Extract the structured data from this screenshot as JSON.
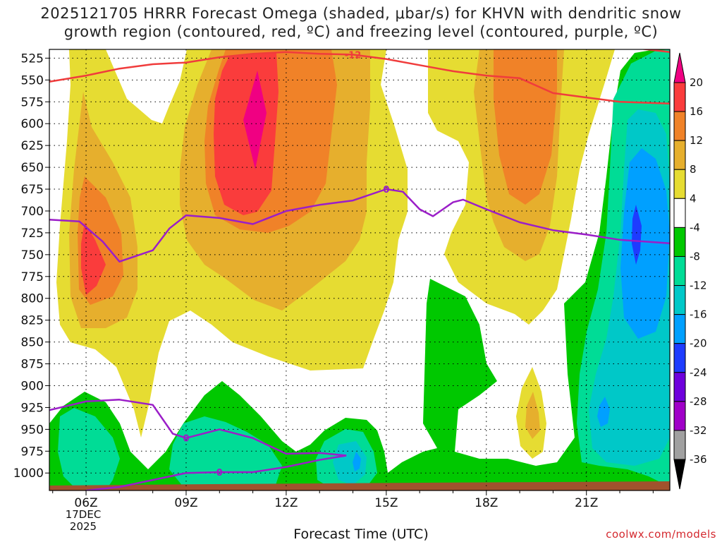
{
  "title_line1": "2025121705 HRRR Forecast Omega (shaded, μbar/s) for KHVN with dendritic snow",
  "title_line2": "growth region (contoured, red, ºC) and freezing level (contoured, purple, ºC)",
  "xlabel": "Forecast Time (UTC)",
  "date_label": [
    "17DEC",
    "2025"
  ],
  "credit": "coolwx.com/models",
  "chart_data": {
    "type": "heatmap",
    "x_start_hour": 4.9,
    "x_end_hour": 23.5,
    "x_ticks": [
      {
        "hour": 6,
        "label": "06Z"
      },
      {
        "hour": 9,
        "label": "09Z"
      },
      {
        "hour": 12,
        "label": "12Z"
      },
      {
        "hour": 15,
        "label": "15Z"
      },
      {
        "hour": 18,
        "label": "18Z"
      },
      {
        "hour": 21,
        "label": "21Z"
      }
    ],
    "y_top": 515,
    "y_bottom": 1020,
    "y_ticks": [
      525,
      550,
      575,
      600,
      625,
      650,
      675,
      700,
      725,
      750,
      775,
      800,
      825,
      850,
      875,
      900,
      925,
      950,
      975,
      1000
    ],
    "colorbar": {
      "levels": [
        -36,
        -32,
        -28,
        -24,
        -20,
        -16,
        -12,
        -8,
        -4,
        4,
        8,
        12,
        16,
        20
      ],
      "label_values": [
        20,
        16,
        12,
        8,
        4,
        -4,
        -8,
        -12,
        -16,
        -20,
        -24,
        -28,
        -32,
        -36
      ],
      "colors": {
        "below_-32": "#000000",
        "-36_-32": "#a0a0a0",
        "-32_-28": "#a000c8",
        "-28_-24": "#6e00dc",
        "-24_-20": "#1e3cff",
        "-20_-16": "#00a0ff",
        "-16_-12": "#00c8c8",
        "-12_-8": "#00dc96",
        "-8_-4": "#00c800",
        "-4_4": "#ffffff",
        "4_8": "#e6dc32",
        "8_12": "#e6af2d",
        "12_16": "#f08228",
        "16_20": "#fa3c3c",
        "above_20": "#f00082"
      }
    },
    "dgz_contours": [
      {
        "value": -12,
        "label": "-12",
        "points": [
          [
            4.9,
            552
          ],
          [
            6,
            545
          ],
          [
            7,
            537
          ],
          [
            8,
            532
          ],
          [
            9,
            530
          ],
          [
            10,
            524
          ],
          [
            11,
            520
          ],
          [
            12,
            518
          ],
          [
            13,
            520
          ],
          [
            14,
            521
          ],
          [
            15,
            526
          ],
          [
            16,
            533
          ],
          [
            17,
            540
          ],
          [
            18,
            545
          ],
          [
            19,
            548
          ],
          [
            20,
            565
          ],
          [
            21,
            570
          ],
          [
            22,
            575
          ],
          [
            23.5,
            577
          ]
        ]
      },
      {
        "value": -12,
        "label": "",
        "points": [
          [
            22.6,
            514
          ],
          [
            23.5,
            518
          ]
        ]
      }
    ],
    "freezing_contours": [
      {
        "value": 0,
        "label": "0",
        "points": [
          [
            4.9,
            710
          ],
          [
            5.8,
            712
          ],
          [
            6.5,
            735
          ],
          [
            7,
            758
          ],
          [
            8,
            745
          ],
          [
            8.5,
            720
          ],
          [
            9,
            705
          ],
          [
            10,
            708
          ],
          [
            11,
            715
          ],
          [
            12,
            700
          ],
          [
            13,
            693
          ],
          [
            14,
            688
          ],
          [
            15,
            675
          ],
          [
            15.5,
            678
          ],
          [
            16,
            698
          ],
          [
            16.4,
            706
          ],
          [
            17,
            690
          ],
          [
            17.3,
            687
          ],
          [
            18,
            698
          ],
          [
            19,
            713
          ],
          [
            20,
            722
          ],
          [
            21,
            727
          ],
          [
            22,
            733
          ],
          [
            23.5,
            737
          ]
        ]
      },
      {
        "value": 0,
        "label": "0",
        "points": [
          [
            4.9,
            928
          ],
          [
            6,
            918
          ],
          [
            7,
            916
          ],
          [
            8,
            922
          ],
          [
            8.6,
            955
          ],
          [
            9,
            960
          ],
          [
            10,
            950
          ],
          [
            11,
            960
          ],
          [
            12,
            978
          ],
          [
            13,
            977
          ],
          [
            13.8,
            980
          ]
        ]
      },
      {
        "value": 0,
        "label": "0",
        "points": [
          [
            6,
            1020
          ],
          [
            7,
            1016
          ],
          [
            8,
            1008
          ],
          [
            9,
            1000
          ],
          [
            10,
            999
          ],
          [
            11,
            999
          ],
          [
            12,
            993
          ],
          [
            13,
            985
          ],
          [
            13.8,
            980
          ]
        ]
      }
    ]
  }
}
